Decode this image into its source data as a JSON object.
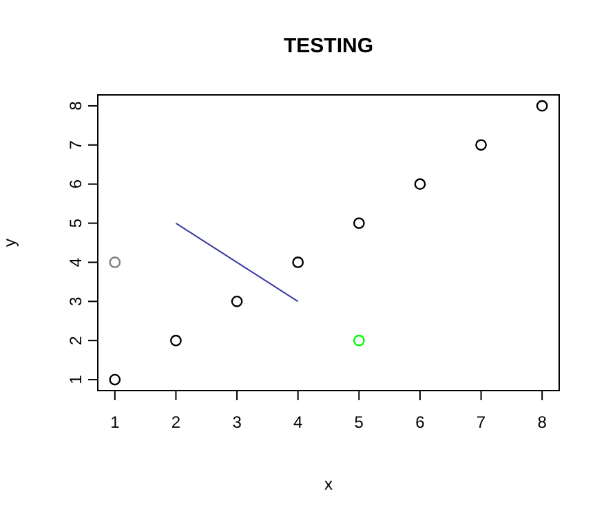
{
  "chart_data": {
    "type": "scatter",
    "title": "TESTING",
    "xlabel": "x",
    "ylabel": "y",
    "xlim": [
      0.72,
      8.28
    ],
    "ylim": [
      0.72,
      8.28
    ],
    "xticks": [
      1,
      2,
      3,
      4,
      5,
      6,
      7,
      8
    ],
    "yticks": [
      1,
      2,
      3,
      4,
      5,
      6,
      7,
      8
    ],
    "marker": "circle",
    "grid": false,
    "series": [
      {
        "color": "#000000",
        "x": [
          1,
          2,
          3,
          4,
          5,
          6,
          7,
          8
        ],
        "values": [
          1,
          2,
          3,
          4,
          5,
          6,
          7,
          8
        ]
      },
      {
        "color": "#808080",
        "x": [
          1
        ],
        "values": [
          4
        ]
      },
      {
        "color": "#00ff00",
        "x": [
          5
        ],
        "values": [
          2
        ]
      },
      {
        "type": "line",
        "color": "#3a3aa0",
        "marker": "none",
        "x": [
          2,
          4
        ],
        "values": [
          5,
          3
        ]
      }
    ]
  }
}
